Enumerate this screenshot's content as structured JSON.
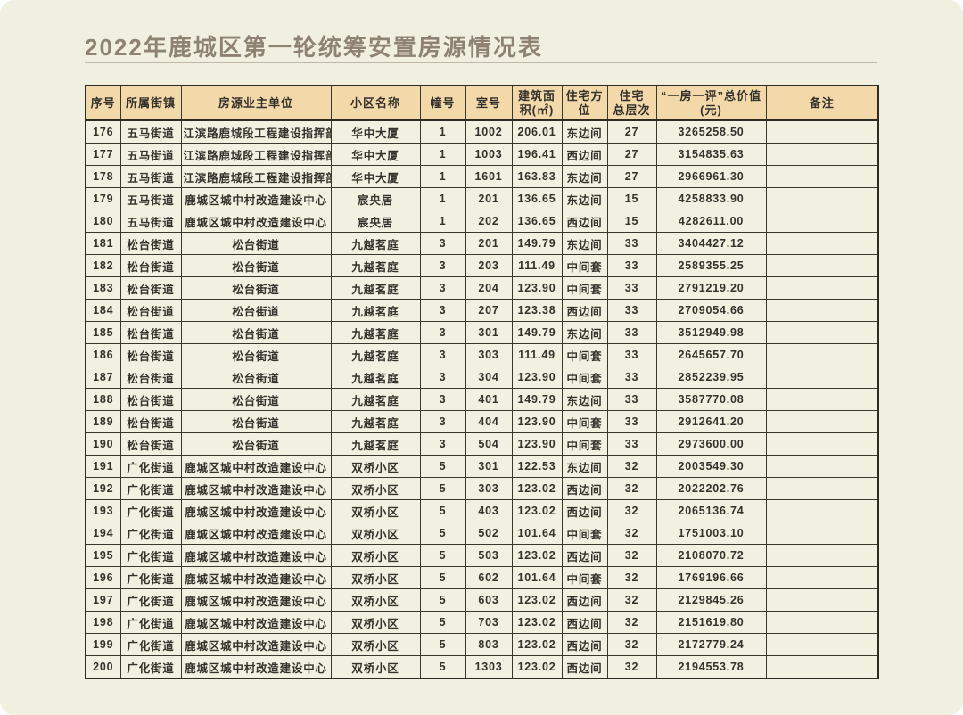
{
  "page": {
    "title": "2022年鹿城区第一轮统筹安置房源情况表"
  },
  "table": {
    "headers": [
      "序号",
      "所属街镇",
      "房源业主单位",
      "小区名称",
      "幢号",
      "室号",
      "建筑面\n积(㎡)",
      "住宅方位",
      "住宅\n总层次",
      "“一房一评”总价值\n(元)",
      "备注"
    ],
    "rows": [
      [
        "176",
        "五马街道",
        "江滨路鹿城段工程建设指挥部",
        "华中大厦",
        "1",
        "1002",
        "206.01",
        "东边间",
        "27",
        "3265258.50",
        ""
      ],
      [
        "177",
        "五马街道",
        "江滨路鹿城段工程建设指挥部",
        "华中大厦",
        "1",
        "1003",
        "196.41",
        "西边间",
        "27",
        "3154835.63",
        ""
      ],
      [
        "178",
        "五马街道",
        "江滨路鹿城段工程建设指挥部",
        "华中大厦",
        "1",
        "1601",
        "163.83",
        "东边间",
        "27",
        "2966961.30",
        ""
      ],
      [
        "179",
        "五马街道",
        "鹿城区城中村改造建设中心",
        "宸央居",
        "1",
        "201",
        "136.65",
        "东边间",
        "15",
        "4258833.90",
        ""
      ],
      [
        "180",
        "五马街道",
        "鹿城区城中村改造建设中心",
        "宸央居",
        "1",
        "202",
        "136.65",
        "西边间",
        "15",
        "4282611.00",
        ""
      ],
      [
        "181",
        "松台街道",
        "松台街道",
        "九越茗庭",
        "3",
        "201",
        "149.79",
        "东边间",
        "33",
        "3404427.12",
        ""
      ],
      [
        "182",
        "松台街道",
        "松台街道",
        "九越茗庭",
        "3",
        "203",
        "111.49",
        "中间套",
        "33",
        "2589355.25",
        ""
      ],
      [
        "183",
        "松台街道",
        "松台街道",
        "九越茗庭",
        "3",
        "204",
        "123.90",
        "中间套",
        "33",
        "2791219.20",
        ""
      ],
      [
        "184",
        "松台街道",
        "松台街道",
        "九越茗庭",
        "3",
        "207",
        "123.38",
        "西边间",
        "33",
        "2709054.66",
        ""
      ],
      [
        "185",
        "松台街道",
        "松台街道",
        "九越茗庭",
        "3",
        "301",
        "149.79",
        "东边间",
        "33",
        "3512949.98",
        ""
      ],
      [
        "186",
        "松台街道",
        "松台街道",
        "九越茗庭",
        "3",
        "303",
        "111.49",
        "中间套",
        "33",
        "2645657.70",
        ""
      ],
      [
        "187",
        "松台街道",
        "松台街道",
        "九越茗庭",
        "3",
        "304",
        "123.90",
        "中间套",
        "33",
        "2852239.95",
        ""
      ],
      [
        "188",
        "松台街道",
        "松台街道",
        "九越茗庭",
        "3",
        "401",
        "149.79",
        "东边间",
        "33",
        "3587770.08",
        ""
      ],
      [
        "189",
        "松台街道",
        "松台街道",
        "九越茗庭",
        "3",
        "404",
        "123.90",
        "中间套",
        "33",
        "2912641.20",
        ""
      ],
      [
        "190",
        "松台街道",
        "松台街道",
        "九越茗庭",
        "3",
        "504",
        "123.90",
        "中间套",
        "33",
        "2973600.00",
        ""
      ],
      [
        "191",
        "广化街道",
        "鹿城区城中村改造建设中心",
        "双桥小区",
        "5",
        "301",
        "122.53",
        "东边间",
        "32",
        "2003549.30",
        ""
      ],
      [
        "192",
        "广化街道",
        "鹿城区城中村改造建设中心",
        "双桥小区",
        "5",
        "303",
        "123.02",
        "西边间",
        "32",
        "2022202.76",
        ""
      ],
      [
        "193",
        "广化街道",
        "鹿城区城中村改造建设中心",
        "双桥小区",
        "5",
        "403",
        "123.02",
        "西边间",
        "32",
        "2065136.74",
        ""
      ],
      [
        "194",
        "广化街道",
        "鹿城区城中村改造建设中心",
        "双桥小区",
        "5",
        "502",
        "101.64",
        "中间套",
        "32",
        "1751003.10",
        ""
      ],
      [
        "195",
        "广化街道",
        "鹿城区城中村改造建设中心",
        "双桥小区",
        "5",
        "503",
        "123.02",
        "西边间",
        "32",
        "2108070.72",
        ""
      ],
      [
        "196",
        "广化街道",
        "鹿城区城中村改造建设中心",
        "双桥小区",
        "5",
        "602",
        "101.64",
        "中间套",
        "32",
        "1769196.66",
        ""
      ],
      [
        "197",
        "广化街道",
        "鹿城区城中村改造建设中心",
        "双桥小区",
        "5",
        "603",
        "123.02",
        "西边间",
        "32",
        "2129845.26",
        ""
      ],
      [
        "198",
        "广化街道",
        "鹿城区城中村改造建设中心",
        "双桥小区",
        "5",
        "703",
        "123.02",
        "西边间",
        "32",
        "2151619.80",
        ""
      ],
      [
        "199",
        "广化街道",
        "鹿城区城中村改造建设中心",
        "双桥小区",
        "5",
        "803",
        "123.02",
        "西边间",
        "32",
        "2172779.24",
        ""
      ],
      [
        "200",
        "广化街道",
        "鹿城区城中村改造建设中心",
        "双桥小区",
        "5",
        "1303",
        "123.02",
        "西边间",
        "32",
        "2194553.78",
        ""
      ]
    ],
    "colors": {
      "sheet_background": "#f1efdf",
      "header_background": "#f3d9aa",
      "border": "#3a372f",
      "title_text": "#8e8273",
      "body_text": "#34322c"
    }
  }
}
